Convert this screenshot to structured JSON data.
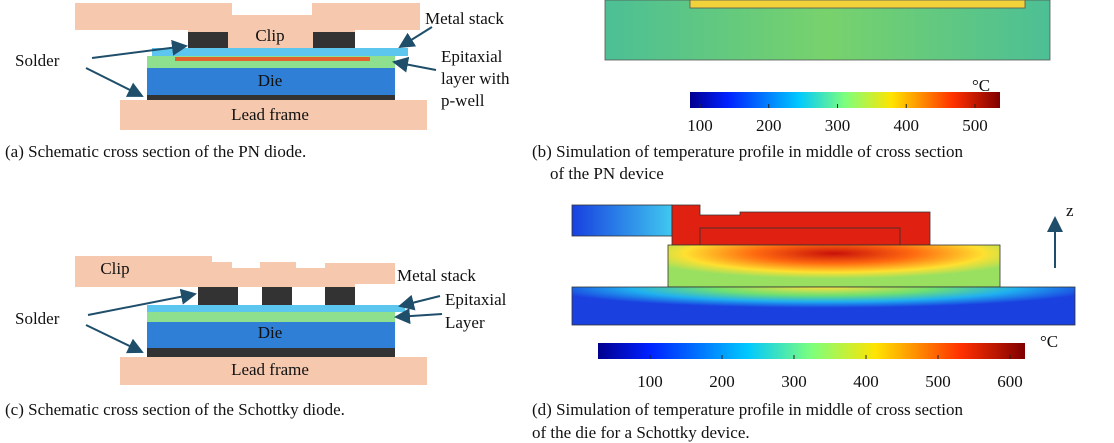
{
  "panels": [
    {
      "caption": [
        "(a) Schematic cross section of the PN diode."
      ],
      "labels": {
        "clip": "Clip",
        "die": "Die",
        "lead_frame": "Lead frame",
        "solder": "Solder",
        "metal_stack": "Metal stack",
        "epitaxial": [
          "Epitaxial",
          "layer with",
          "p-well"
        ]
      }
    },
    {
      "caption": [
        "(b) Simulation of temperature profile in middle of cross section",
        "of the PN device"
      ],
      "colorbar": {
        "unit": "°C",
        "ticks": [
          100,
          200,
          300,
          400,
          500
        ]
      }
    },
    {
      "caption": [
        "(c) Schematic cross section of the Schottky diode."
      ],
      "labels": {
        "clip": "Clip",
        "die": "Die",
        "lead_frame": "Lead frame",
        "solder": "Solder",
        "metal_stack": "Metal stack",
        "epitaxial": [
          "Epitaxial",
          "Layer"
        ]
      }
    },
    {
      "caption": [
        "(d) Simulation of temperature profile in middle of cross section",
        "of the die for a Schottky device."
      ],
      "axis_label": "z",
      "colorbar": {
        "unit": "°C",
        "ticks": [
          100,
          200,
          300,
          400,
          500,
          600
        ]
      }
    }
  ]
}
